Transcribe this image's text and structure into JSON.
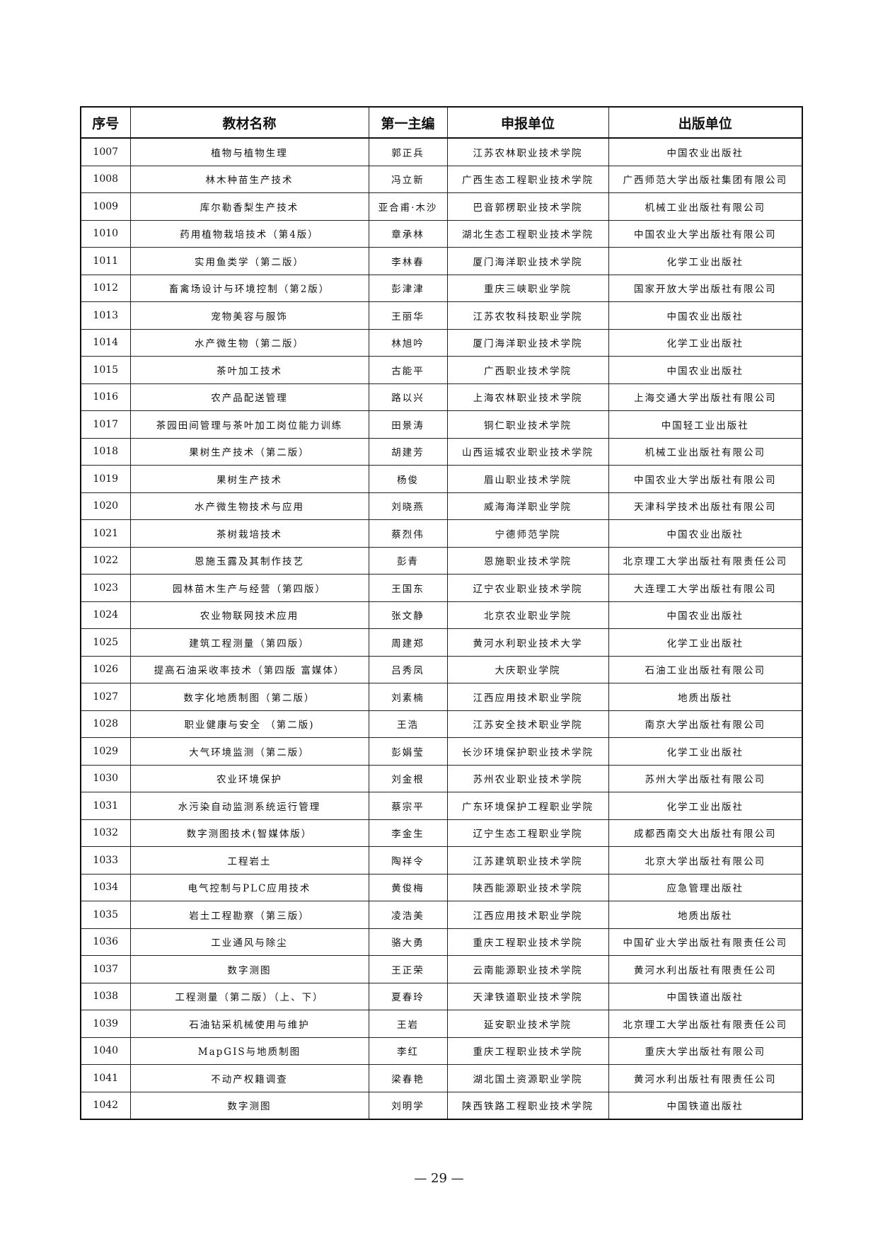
{
  "table": {
    "headers": [
      "序号",
      "教材名称",
      "第一主编",
      "申报单位",
      "出版单位"
    ],
    "rows": [
      [
        "1007",
        "植物与植物生理",
        "郭正兵",
        "江苏农林职业技术学院",
        "中国农业出版社"
      ],
      [
        "1008",
        "林木种苗生产技术",
        "冯立新",
        "广西生态工程职业技术学院",
        "广西师范大学出版社集团有限公司"
      ],
      [
        "1009",
        "库尔勒香梨生产技术",
        "亚合甫·木沙",
        "巴音郭楞职业技术学院",
        "机械工业出版社有限公司"
      ],
      [
        "1010",
        "药用植物栽培技术（第4版）",
        "章承林",
        "湖北生态工程职业技术学院",
        "中国农业大学出版社有限公司"
      ],
      [
        "1011",
        "实用鱼类学（第二版）",
        "李林春",
        "厦门海洋职业技术学院",
        "化学工业出版社"
      ],
      [
        "1012",
        "畜禽场设计与环境控制（第2版）",
        "彭津津",
        "重庆三峡职业学院",
        "国家开放大学出版社有限公司"
      ],
      [
        "1013",
        "宠物美容与服饰",
        "王丽华",
        "江苏农牧科技职业学院",
        "中国农业出版社"
      ],
      [
        "1014",
        "水产微生物（第二版）",
        "林旭吟",
        "厦门海洋职业技术学院",
        "化学工业出版社"
      ],
      [
        "1015",
        "茶叶加工技术",
        "古能平",
        "广西职业技术学院",
        "中国农业出版社"
      ],
      [
        "1016",
        "农产品配送管理",
        "路以兴",
        "上海农林职业技术学院",
        "上海交通大学出版社有限公司"
      ],
      [
        "1017",
        "茶园田间管理与茶叶加工岗位能力训练",
        "田景涛",
        "铜仁职业技术学院",
        "中国轻工业出版社"
      ],
      [
        "1018",
        "果树生产技术（第二版）",
        "胡建芳",
        "山西运城农业职业技术学院",
        "机械工业出版社有限公司"
      ],
      [
        "1019",
        "果树生产技术",
        "杨俊",
        "眉山职业技术学院",
        "中国农业大学出版社有限公司"
      ],
      [
        "1020",
        "水产微生物技术与应用",
        "刘晓燕",
        "威海海洋职业学院",
        "天津科学技术出版社有限公司"
      ],
      [
        "1021",
        "茶树栽培技术",
        "蔡烈伟",
        "宁德师范学院",
        "中国农业出版社"
      ],
      [
        "1022",
        "恩施玉露及其制作技艺",
        "彭青",
        "恩施职业技术学院",
        "北京理工大学出版社有限责任公司"
      ],
      [
        "1023",
        "园林苗木生产与经营（第四版）",
        "王国东",
        "辽宁农业职业技术学院",
        "大连理工大学出版社有限公司"
      ],
      [
        "1024",
        "农业物联网技术应用",
        "张文静",
        "北京农业职业学院",
        "中国农业出版社"
      ],
      [
        "1025",
        "建筑工程测量（第四版）",
        "周建郑",
        "黄河水利职业技术大学",
        "化学工业出版社"
      ],
      [
        "1026",
        "提高石油采收率技术（第四版 富媒体）",
        "吕秀凤",
        "大庆职业学院",
        "石油工业出版社有限公司"
      ],
      [
        "1027",
        "数字化地质制图（第二版）",
        "刘素楠",
        "江西应用技术职业学院",
        "地质出版社"
      ],
      [
        "1028",
        "职业健康与安全 （第二版)",
        "王浩",
        "江苏安全技术职业学院",
        "南京大学出版社有限公司"
      ],
      [
        "1029",
        "大气环境监测（第二版）",
        "彭娟莹",
        "长沙环境保护职业技术学院",
        "化学工业出版社"
      ],
      [
        "1030",
        "农业环境保护",
        "刘金根",
        "苏州农业职业技术学院",
        "苏州大学出版社有限公司"
      ],
      [
        "1031",
        "水污染自动监测系统运行管理",
        "蔡宗平",
        "广东环境保护工程职业学院",
        "化学工业出版社"
      ],
      [
        "1032",
        "数字测图技术(智媒体版）",
        "李金生",
        "辽宁生态工程职业学院",
        "成都西南交大出版社有限公司"
      ],
      [
        "1033",
        "工程岩土",
        "陶祥令",
        "江苏建筑职业技术学院",
        "北京大学出版社有限公司"
      ],
      [
        "1034",
        "电气控制与PLC应用技术",
        "黄俊梅",
        "陕西能源职业技术学院",
        "应急管理出版社"
      ],
      [
        "1035",
        "岩土工程勘察（第三版）",
        "凌浩美",
        "江西应用技术职业学院",
        "地质出版社"
      ],
      [
        "1036",
        "工业通风与除尘",
        "骆大勇",
        "重庆工程职业技术学院",
        "中国矿业大学出版社有限责任公司"
      ],
      [
        "1037",
        "数字测图",
        "王正荣",
        "云南能源职业技术学院",
        "黄河水利出版社有限责任公司"
      ],
      [
        "1038",
        "工程测量（第二版）（上、下）",
        "夏春玲",
        "天津铁道职业技术学院",
        "中国铁道出版社"
      ],
      [
        "1039",
        "石油钻采机械使用与维护",
        "王岩",
        "延安职业技术学院",
        "北京理工大学出版社有限责任公司"
      ],
      [
        "1040",
        "MapGIS与地质制图",
        "李红",
        "重庆工程职业技术学院",
        "重庆大学出版社有限公司"
      ],
      [
        "1041",
        "不动产权籍调查",
        "梁春艳",
        "湖北国土资源职业学院",
        "黄河水利出版社有限责任公司"
      ],
      [
        "1042",
        "数字测图",
        "刘明学",
        "陕西铁路工程职业技术学院",
        "中国铁道出版社"
      ]
    ]
  },
  "footer": {
    "page_number": "— 29 —"
  }
}
